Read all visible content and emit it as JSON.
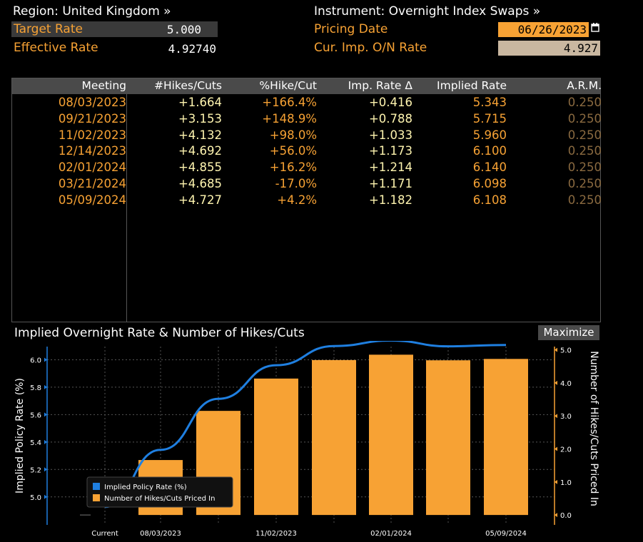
{
  "header": {
    "region": "Region: United Kingdom »",
    "instrument": "Instrument: Overnight Index Swaps »",
    "target_rate_label": "Target Rate",
    "target_rate_value": "5.000",
    "effective_rate_label": "Effective Rate",
    "effective_rate_value": "4.92740",
    "pricing_date_label": "Pricing Date",
    "pricing_date_value": "06/26/2023",
    "cur_imp_label": "Cur. Imp. O/N Rate",
    "cur_imp_value": "4.927"
  },
  "table": {
    "columns": [
      "Meeting",
      "#Hikes/Cuts",
      "%Hike/Cut",
      "Imp. Rate Δ",
      "Implied Rate",
      "A.R.M."
    ],
    "rows": [
      {
        "meeting": "08/03/2023",
        "hikes": "+1.664",
        "pct": "+166.4%",
        "delta": "+0.416",
        "implied": "5.343",
        "arm": "0.250"
      },
      {
        "meeting": "09/21/2023",
        "hikes": "+3.153",
        "pct": "+148.9%",
        "delta": "+0.788",
        "implied": "5.715",
        "arm": "0.250"
      },
      {
        "meeting": "11/02/2023",
        "hikes": "+4.132",
        "pct": "+98.0%",
        "delta": "+1.033",
        "implied": "5.960",
        "arm": "0.250"
      },
      {
        "meeting": "12/14/2023",
        "hikes": "+4.692",
        "pct": "+56.0%",
        "delta": "+1.173",
        "implied": "6.100",
        "arm": "0.250"
      },
      {
        "meeting": "02/01/2024",
        "hikes": "+4.855",
        "pct": "+16.2%",
        "delta": "+1.214",
        "implied": "6.140",
        "arm": "0.250"
      },
      {
        "meeting": "03/21/2024",
        "hikes": "+4.685",
        "pct": "-17.0%",
        "delta": "+1.171",
        "implied": "6.098",
        "arm": "0.250"
      },
      {
        "meeting": "05/09/2024",
        "hikes": "+4.727",
        "pct": "+4.2%",
        "delta": "+1.182",
        "implied": "6.108",
        "arm": "0.250"
      }
    ]
  },
  "chart_title": "Implied Overnight Rate & Number of Hikes/Cuts",
  "maximize_label": "Maximize",
  "chart_data": {
    "type": "bar",
    "categories": [
      "Current",
      "08/03/2023",
      "09/21/2023",
      "11/02/2023",
      "12/14/2023",
      "02/01/2024",
      "03/21/2024",
      "05/09/2024"
    ],
    "x_tick_labels": [
      "Current",
      "08/03/2023",
      "",
      "11/02/2023",
      "",
      "02/01/2024",
      "",
      "05/09/2024"
    ],
    "series": [
      {
        "name": "Implied Policy Rate (%)",
        "type": "line",
        "axis": "left",
        "color": "#1f7fe0",
        "values": [
          4.927,
          5.343,
          5.715,
          5.96,
          6.1,
          6.14,
          6.098,
          6.108
        ]
      },
      {
        "name": "Number of Hikes/Cuts Priced In",
        "type": "bar",
        "axis": "right",
        "color": "#f7a234",
        "values": [
          0,
          1.664,
          3.153,
          4.132,
          4.692,
          4.855,
          4.685,
          4.727
        ]
      }
    ],
    "ylabel": "Implied Policy Rate (%)",
    "y2label": "Number of Hikes/Cuts Priced In",
    "ylim": [
      4.9,
      6.2
    ],
    "yticks": [
      "5.0",
      "5.2",
      "5.4",
      "5.6",
      "5.8",
      "6.0",
      "6.2"
    ],
    "y2lim": [
      -0.3,
      5.1
    ],
    "y2ticks": [
      "0.0",
      "1.0",
      "2.0",
      "3.0",
      "4.0",
      "5.0"
    ],
    "grid": true,
    "legend": "bottom-left"
  }
}
